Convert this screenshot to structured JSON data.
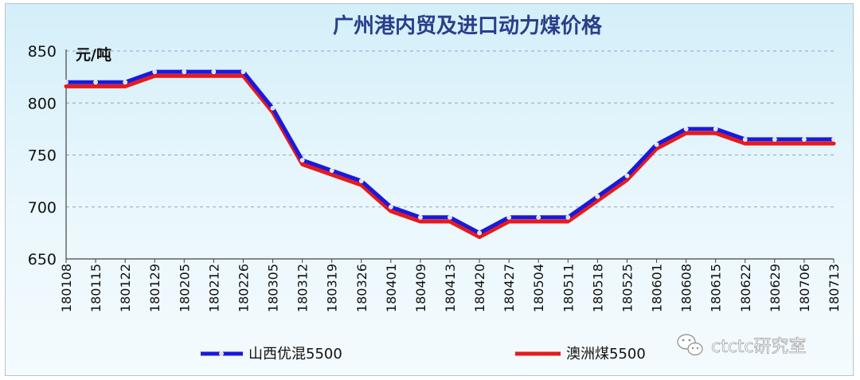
{
  "watermark": {
    "text": "ctctc研究室"
  },
  "chart_data": {
    "type": "line",
    "title": "广州港内贸及进口动力煤价格",
    "ylabel": "元/吨",
    "xlabel": "",
    "ylim": [
      650,
      850
    ],
    "yticks": [
      650,
      700,
      750,
      800,
      850
    ],
    "grid": true,
    "legend_position": "bottom",
    "categories": [
      "180108",
      "180115",
      "180122",
      "180129",
      "180205",
      "180212",
      "180226",
      "180305",
      "180312",
      "180319",
      "180326",
      "180401",
      "180409",
      "180413",
      "180420",
      "180427",
      "180504",
      "180511",
      "180518",
      "180525",
      "180601",
      "180608",
      "180615",
      "180622",
      "180629",
      "180706",
      "180713"
    ],
    "series": [
      {
        "name": "山西优混5500",
        "color": "#1a1adc",
        "values": [
          820,
          820,
          820,
          830,
          830,
          830,
          830,
          795,
          745,
          735,
          725,
          700,
          690,
          690,
          675,
          690,
          690,
          690,
          710,
          730,
          760,
          775,
          775,
          765,
          765,
          765,
          765
        ]
      },
      {
        "name": "澳洲煤5500",
        "color": "#e81a1a",
        "values": [
          816,
          816,
          816,
          826,
          826,
          826,
          826,
          791,
          741,
          731,
          721,
          696,
          686,
          686,
          671,
          686,
          686,
          686,
          706,
          726,
          756,
          771,
          771,
          761,
          761,
          761,
          761
        ]
      }
    ]
  }
}
